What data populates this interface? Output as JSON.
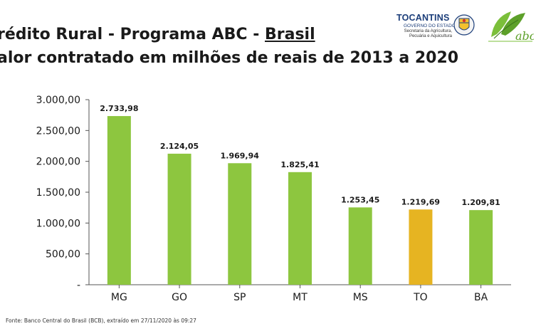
{
  "header": {
    "title_prefix": "rédito Rural - Programa ABC - ",
    "title_underlined": "Brasil",
    "subtitle": "alor contratado em milhões de reais de 2013 a 2020"
  },
  "logos": {
    "tocantins_name": "TOCANTINS",
    "tocantins_gov": "GOVERNO DO ESTADO",
    "tocantins_secretaria": "Secretaria da Agricultura, Pecuária e Aquicultura",
    "abc_text": "abc"
  },
  "footer": "Fonte: Banco Central do Brasil (BCB), extraído em 27/11/2020 às 09:27",
  "colors": {
    "bar": "#8dc63f",
    "highlight": "#e6b422",
    "axis": "#555555"
  },
  "chart_data": {
    "type": "bar",
    "categories": [
      "MG",
      "GO",
      "SP",
      "MT",
      "MS",
      "TO",
      "BA"
    ],
    "values": [
      2733.98,
      2124.05,
      1969.94,
      1825.41,
      1253.45,
      1219.69,
      1209.81
    ],
    "value_labels": [
      "2.733,98",
      "2.124,05",
      "1.969,94",
      "1.825,41",
      "1.253,45",
      "1.219,69",
      "1.209,81"
    ],
    "highlight_category": "TO",
    "ylim": [
      0,
      3000
    ],
    "yticks": [
      0,
      500,
      1000,
      1500,
      2000,
      2500,
      3000
    ],
    "ytick_labels": [
      "-",
      "500,00",
      "1.000,00",
      "1.500,00",
      "2.000,00",
      "2.500,00",
      "3.000,00"
    ],
    "grid": false,
    "legend": "none"
  }
}
